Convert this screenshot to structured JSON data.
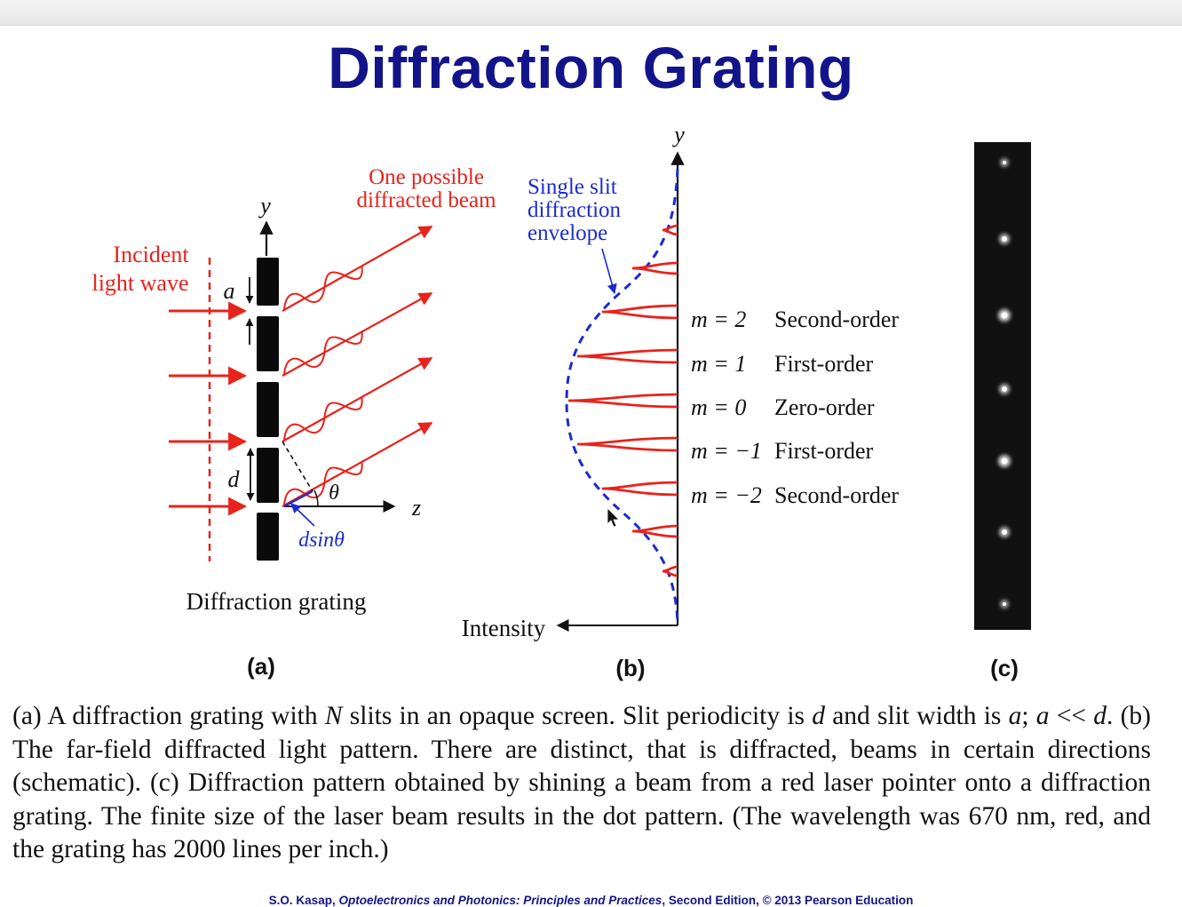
{
  "title": "Diffraction Grating",
  "panel_a": {
    "incident_label_line1": "Incident",
    "incident_label_line2": "light wave",
    "beam_label_line1": "One possible",
    "beam_label_line2": "diffracted beam",
    "y_axis": "y",
    "z_axis": "z",
    "slit_width_symbol": "a",
    "period_symbol": "d",
    "angle_symbol": "θ",
    "path_difference": "dsinθ",
    "caption_label": "Diffraction grating",
    "panel_label": "(a)"
  },
  "panel_b": {
    "envelope_line1": "Single slit",
    "envelope_line2": "diffraction",
    "envelope_line3": "envelope",
    "y_axis": "y",
    "intensity_label": "Intensity",
    "orders": [
      {
        "m": "m = 2",
        "name": "Second-order"
      },
      {
        "m": "m = 1",
        "name": "First-order"
      },
      {
        "m": "m = 0",
        "name": "Zero-order"
      },
      {
        "m": "m = −1",
        "name": "First-order"
      },
      {
        "m": "m = −2",
        "name": "Second-order"
      }
    ],
    "panel_label": "(b)"
  },
  "panel_c": {
    "panel_label": "(c)"
  },
  "caption": {
    "p1": "(a) A diffraction grating with ",
    "N": "N",
    "p2": " slits in an opaque screen. Slit periodicity is ",
    "d1": "d",
    "p3": " and slit width is ",
    "a1": "a",
    "p4": "; ",
    "a2": "a",
    "p5": " << ",
    "d2": "d",
    "p6": ". (b) The far-field diffracted light pattern. There are distinct, that is diffracted, beams in certain directions (schematic). (c) Diffraction pattern obtained by shining a beam from a red laser pointer onto a diffraction grating. The finite size of the laser beam results in the dot pattern. (The wavelength was 670 nm, red, and the grating has 2000 lines per inch.)"
  },
  "footer": {
    "author": "S.O. Kasap, ",
    "book": "Optoelectronics and Photonics: Principles and Practices",
    "rest": ", Second Edition, © 2013 Pearson Education"
  },
  "colors": {
    "title": "#14148a",
    "red": "#e8231c",
    "blue": "#1c2bd0",
    "black": "#111111"
  }
}
